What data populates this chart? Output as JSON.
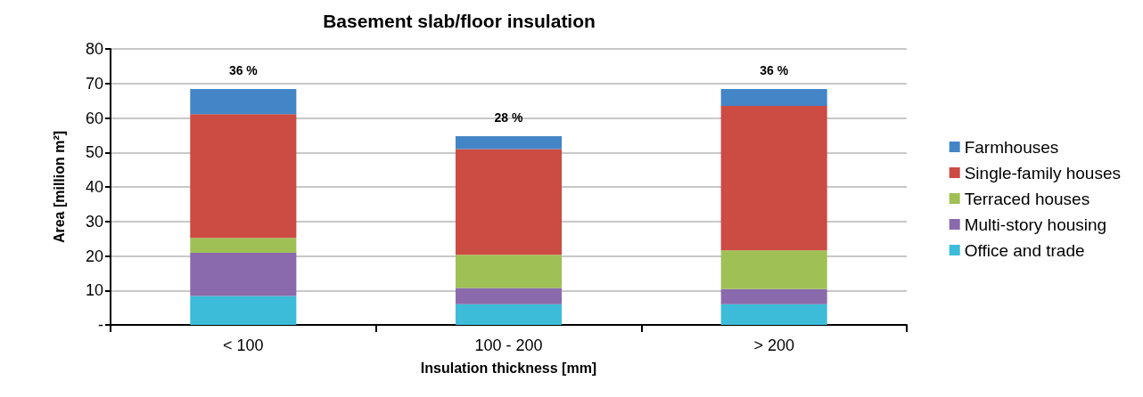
{
  "chart_data": {
    "type": "bar",
    "title": "Basement slab/floor insulation",
    "xlabel": "Insulation thickness [mm]",
    "ylabel": "Area [million m²]",
    "categories": [
      "< 100",
      "100 - 200",
      "> 200"
    ],
    "stacked": true,
    "series": [
      {
        "name": "Office and trade",
        "color": "#3cbcd8",
        "values": [
          8.4,
          6.0,
          6.0
        ]
      },
      {
        "name": "Multi-story housing",
        "color": "#8a6aad",
        "values": [
          12.5,
          4.7,
          4.4
        ]
      },
      {
        "name": "Terraced houses",
        "color": "#9fc055",
        "values": [
          4.3,
          9.6,
          11.2
        ]
      },
      {
        "name": "Single-family houses",
        "color": "#cc4b42",
        "values": [
          35.9,
          30.7,
          41.9
        ]
      },
      {
        "name": "Farmhouses",
        "color": "#4485c7",
        "values": [
          7.3,
          3.7,
          4.9
        ]
      }
    ],
    "annotations": [
      {
        "text": "36 %",
        "x": "< 100",
        "y": 68.4
      },
      {
        "text": "28 %",
        "x": "100 - 200",
        "y": 54.7
      },
      {
        "text": "36 %",
        "x": "> 200",
        "y": 68.4
      }
    ],
    "ylim": [
      0,
      80
    ],
    "yticks": [
      {
        "value": 0,
        "label": "-"
      },
      10,
      20,
      30,
      40,
      50,
      60,
      70,
      80
    ],
    "grid": "y",
    "legend": "right"
  }
}
